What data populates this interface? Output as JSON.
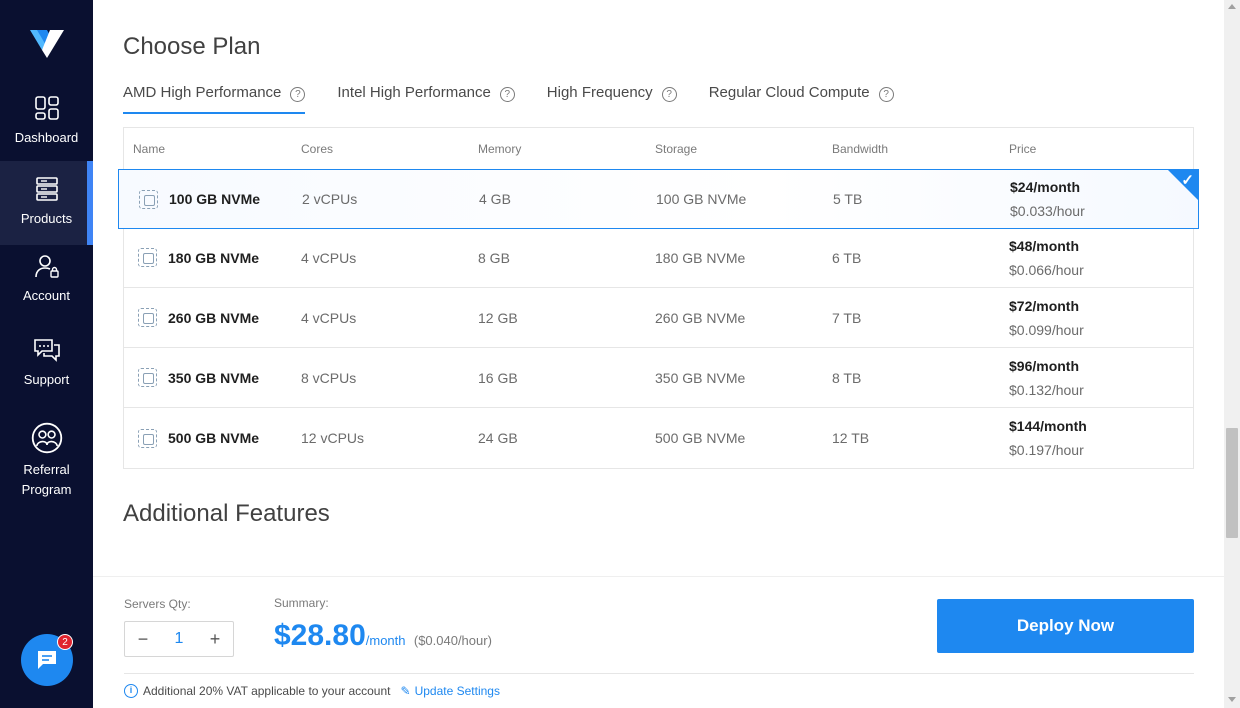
{
  "sidebar": {
    "items": [
      {
        "label": "Dashboard",
        "icon": "dashboard-grid-icon"
      },
      {
        "label": "Products",
        "icon": "server-stack-icon"
      },
      {
        "label": "Account",
        "icon": "user-lock-icon"
      },
      {
        "label": "Support",
        "icon": "chat-support-icon"
      },
      {
        "label": "Referral Program",
        "icon": "referral-users-icon"
      }
    ],
    "active": "Products",
    "chat_badge": "2"
  },
  "main": {
    "title": "Choose Plan",
    "tabs": [
      {
        "label": "AMD High Performance",
        "active": true
      },
      {
        "label": "Intel High Performance",
        "active": false
      },
      {
        "label": "High Frequency",
        "active": false
      },
      {
        "label": "Regular Cloud Compute",
        "active": false
      }
    ],
    "table": {
      "headers": [
        "Name",
        "Cores",
        "Memory",
        "Storage",
        "Bandwidth",
        "Price"
      ],
      "rows": [
        {
          "name": "100 GB NVMe",
          "cores": "2 vCPUs",
          "memory": "4 GB",
          "storage": "100 GB NVMe",
          "bandwidth": "5 TB",
          "price_month": "$24/month",
          "price_hour": "$0.033/hour",
          "selected": true
        },
        {
          "name": "180 GB NVMe",
          "cores": "4 vCPUs",
          "memory": "8 GB",
          "storage": "180 GB NVMe",
          "bandwidth": "6 TB",
          "price_month": "$48/month",
          "price_hour": "$0.066/hour",
          "selected": false
        },
        {
          "name": "260 GB NVMe",
          "cores": "4 vCPUs",
          "memory": "12 GB",
          "storage": "260 GB NVMe",
          "bandwidth": "7 TB",
          "price_month": "$72/month",
          "price_hour": "$0.099/hour",
          "selected": false
        },
        {
          "name": "350 GB NVMe",
          "cores": "8 vCPUs",
          "memory": "16 GB",
          "storage": "350 GB NVMe",
          "bandwidth": "8 TB",
          "price_month": "$96/month",
          "price_hour": "$0.132/hour",
          "selected": false
        },
        {
          "name": "500 GB NVMe",
          "cores": "12 vCPUs",
          "memory": "24 GB",
          "storage": "500 GB NVMe",
          "bandwidth": "12 TB",
          "price_month": "$144/month",
          "price_hour": "$0.197/hour",
          "selected": false
        }
      ]
    },
    "additional_title": "Additional Features"
  },
  "footer": {
    "qty_label": "Servers Qty:",
    "qty_value": "1",
    "qty_minus": "−",
    "qty_plus": "+",
    "summary_label": "Summary:",
    "summary_price": "$28.80",
    "summary_unit": "/month",
    "summary_hour": "($0.040/hour)",
    "deploy_label": "Deploy Now",
    "vat_text": "Additional 20% VAT applicable to your account",
    "update_link": "Update Settings"
  },
  "colors": {
    "accent": "#1e88f0",
    "sidebar_bg": "#0a1030",
    "badge": "#e0242f"
  }
}
